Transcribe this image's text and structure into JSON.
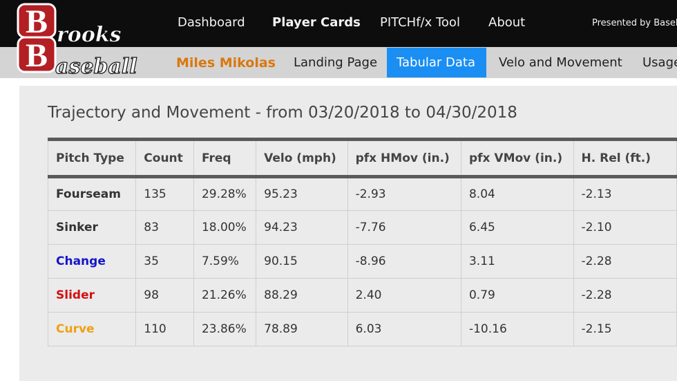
{
  "brand": {
    "logo_text_top": "rooks",
    "logo_text_bottom": "aseball",
    "logo_letter_top": "B",
    "logo_letter_bottom": "B",
    "colors": {
      "logo_red": "#b41f24",
      "accent_orange": "#d9780e",
      "active_tab": "#1a8ef2"
    }
  },
  "topnav": {
    "items": [
      "Dashboard",
      "Player Cards",
      "PITCHf/x Tool",
      "About"
    ],
    "presented_by": "Presented by Baseb"
  },
  "subnav": {
    "player_name": "Miles Mikolas",
    "items": [
      "Landing Page",
      "Tabular Data",
      "Velo and Movement",
      "Usage"
    ],
    "active": "Tabular Data"
  },
  "main": {
    "title": "Trajectory and Movement - from 03/20/2018 to 04/30/2018",
    "table": {
      "headers": [
        "Pitch Type",
        "Count",
        "Freq",
        "Velo (mph)",
        "pfx HMov (in.)",
        "pfx VMov (in.)",
        "H. Rel (ft.)"
      ],
      "rows": [
        {
          "type": "Fourseam",
          "color": "#333333",
          "cells": [
            "135",
            "29.28%",
            "95.23",
            "-2.93",
            "8.04",
            "-2.13"
          ]
        },
        {
          "type": "Sinker",
          "color": "#333333",
          "cells": [
            "83",
            "18.00%",
            "94.23",
            "-7.76",
            "6.45",
            "-2.10"
          ]
        },
        {
          "type": "Change",
          "color": "#1515c8",
          "cells": [
            "35",
            "7.59%",
            "90.15",
            "-8.96",
            "3.11",
            "-2.28"
          ]
        },
        {
          "type": "Slider",
          "color": "#d41010",
          "cells": [
            "98",
            "21.26%",
            "88.29",
            "2.40",
            "0.79",
            "-2.28"
          ]
        },
        {
          "type": "Curve",
          "color": "#f0a010",
          "cells": [
            "110",
            "23.86%",
            "78.89",
            "6.03",
            "-10.16",
            "-2.15"
          ]
        }
      ]
    }
  }
}
